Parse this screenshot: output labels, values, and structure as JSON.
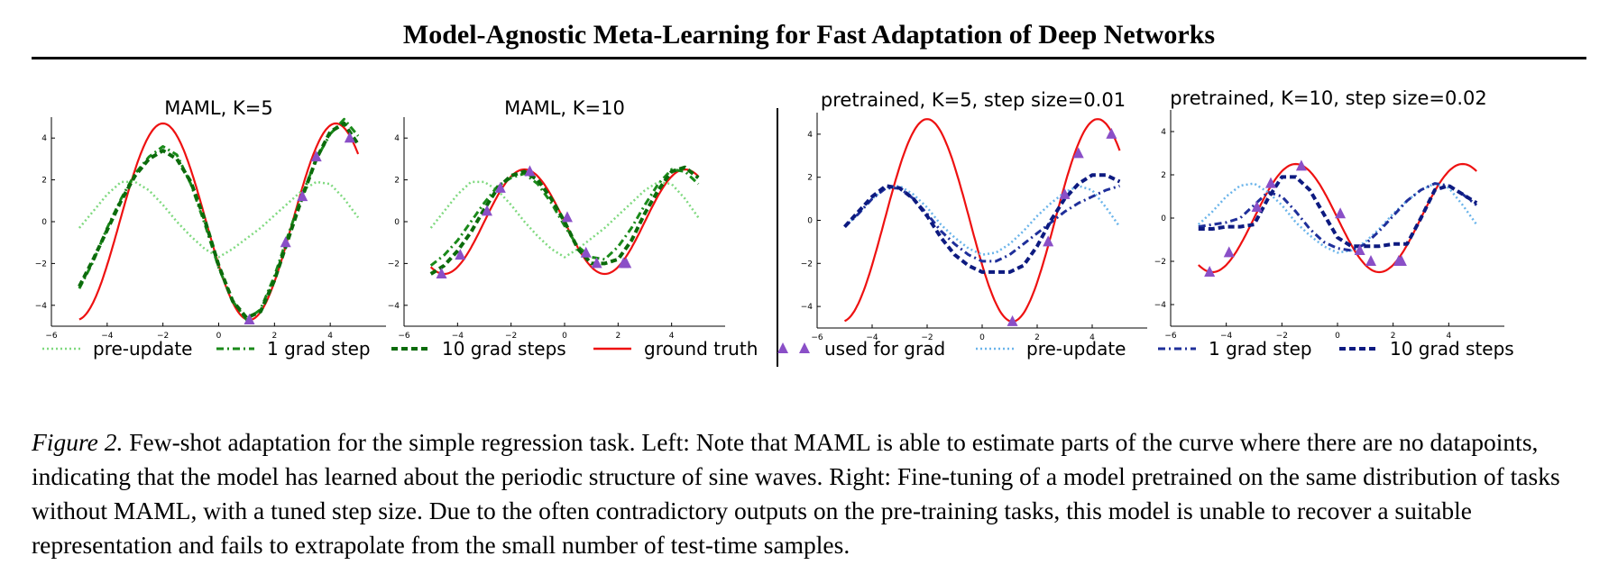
{
  "paper": {
    "title": "Model-Agnostic Meta-Learning for Fast Adaptation of Deep Networks"
  },
  "figure": {
    "label": "Figure 2.",
    "caption": "Few-shot adaptation for the simple regression task. Left: Note that MAML is able to estimate parts of the curve where there are no datapoints, indicating that the model has learned about the periodic structure of sine waves. Right: Fine-tuning of a model pretrained on the same distribution of tasks without MAML, with a tuned step size. Due to the often contradictory outputs on the pre-training tasks, this model is unable to recover a suitable representation and fails to extrapolate from the small number of test-time samples.",
    "legend": [
      {
        "label": "pre-update",
        "color": "#7fd97f",
        "style": "dotted"
      },
      {
        "label": "1 grad step",
        "color": "#1a8a1a",
        "style": "dashdot"
      },
      {
        "label": "10 grad steps",
        "color": "#0b6b0b",
        "style": "dashed"
      },
      {
        "label": "ground truth",
        "color": "#ee1111",
        "style": "solid"
      },
      {
        "label": "used for grad",
        "color": "#8a4fc7",
        "style": "triangle"
      },
      {
        "label": "pre-update",
        "color": "#6ab4ea",
        "style": "dotted"
      },
      {
        "label": "1 grad step",
        "color": "#1f2f9a",
        "style": "dashdot"
      },
      {
        "label": "10 grad steps",
        "color": "#0d1a80",
        "style": "dashed"
      }
    ]
  },
  "chart_data": [
    {
      "type": "line",
      "title": "MAML, K=5",
      "xlim": [
        -6,
        6
      ],
      "ylim": [
        -5,
        5
      ],
      "xticks": [
        -6,
        -4,
        -2,
        0,
        2,
        4
      ],
      "yticks": [
        -4,
        -2,
        0,
        2,
        4
      ],
      "ground_truth": {
        "amplitude": 4.7,
        "period": 6.2,
        "peak_x": -2.0
      },
      "series": [
        {
          "name": "pre-update",
          "x": [
            -5,
            -4.5,
            -4,
            -3.5,
            -3,
            -2.5,
            -2,
            -1.5,
            -1,
            -0.5,
            0,
            0.5,
            1,
            1.5,
            2,
            2.5,
            3,
            3.5,
            4,
            4.5,
            5
          ],
          "y": [
            -0.3,
            0.5,
            1.3,
            1.9,
            1.9,
            1.5,
            0.8,
            0,
            -0.7,
            -1.3,
            -1.7,
            -1.3,
            -0.8,
            -0.3,
            0.3,
            0.9,
            1.5,
            1.9,
            1.8,
            1.1,
            0.2
          ]
        },
        {
          "name": "1 grad step",
          "x": [
            -5,
            -4.5,
            -4,
            -3.5,
            -3,
            -2.5,
            -2,
            -1.5,
            -1,
            -0.5,
            0,
            0.5,
            1,
            1.5,
            2,
            2.5,
            3,
            3.5,
            4,
            4.5,
            5
          ],
          "y": [
            -3.2,
            -1.9,
            -0.3,
            1.1,
            2.3,
            3.1,
            3.6,
            3.2,
            1.8,
            -0.1,
            -2.2,
            -3.8,
            -4.7,
            -4.2,
            -2.6,
            -0.6,
            1.3,
            3.0,
            4.2,
            4.9,
            4.1
          ]
        },
        {
          "name": "10 grad steps",
          "x": [
            -5,
            -4.5,
            -4,
            -3.5,
            -3,
            -2.5,
            -2,
            -1.5,
            -1,
            -0.5,
            0,
            0.5,
            1,
            1.5,
            2,
            2.5,
            3,
            3.5,
            4,
            4.5,
            5
          ],
          "y": [
            -3.1,
            -1.8,
            -0.4,
            1.0,
            2.2,
            3.0,
            3.4,
            3.0,
            1.9,
            0.1,
            -2.1,
            -3.8,
            -4.6,
            -4.3,
            -2.8,
            -0.8,
            1.2,
            3.0,
            4.3,
            4.7,
            3.7
          ]
        }
      ],
      "points": {
        "x": [
          1.1,
          2.4,
          3.0,
          3.5,
          4.7
        ],
        "y": [
          -4.7,
          -1.0,
          1.2,
          3.1,
          4.0
        ]
      }
    },
    {
      "type": "line",
      "title": "MAML, K=10",
      "xlim": [
        -6,
        6
      ],
      "ylim": [
        -5,
        5
      ],
      "xticks": [
        -6,
        -4,
        -2,
        0,
        2,
        4
      ],
      "yticks": [
        -4,
        -2,
        0,
        2,
        4
      ],
      "ground_truth": {
        "amplitude": 2.5,
        "period": 6.0,
        "peak_x": -1.5
      },
      "series": [
        {
          "name": "pre-update",
          "x": [
            -5,
            -4.5,
            -4,
            -3.5,
            -3,
            -2.5,
            -2,
            -1.5,
            -1,
            -0.5,
            0,
            0.5,
            1,
            1.5,
            2,
            2.5,
            3,
            3.5,
            4,
            4.5,
            5
          ],
          "y": [
            -0.3,
            0.5,
            1.3,
            1.9,
            1.9,
            1.5,
            0.8,
            0,
            -0.7,
            -1.3,
            -1.7,
            -1.3,
            -0.8,
            -0.3,
            0.3,
            0.9,
            1.5,
            1.9,
            1.8,
            1.1,
            0.2
          ]
        },
        {
          "name": "1 grad step",
          "x": [
            -5,
            -4.5,
            -4,
            -3.5,
            -3,
            -2.5,
            -2,
            -1.5,
            -1,
            -0.5,
            0,
            0.5,
            1,
            1.5,
            2,
            2.5,
            3,
            3.5,
            4,
            4.5,
            5
          ],
          "y": [
            -2.1,
            -1.6,
            -0.9,
            0,
            0.9,
            1.7,
            2.1,
            2.3,
            1.8,
            0.9,
            -0.2,
            -1.2,
            -1.7,
            -1.8,
            -1.2,
            -0.3,
            0.8,
            1.8,
            2.5,
            2.4,
            1.8
          ]
        },
        {
          "name": "10 grad steps",
          "x": [
            -5,
            -4.5,
            -4,
            -3.5,
            -3,
            -2.5,
            -2,
            -1.5,
            -1,
            -0.5,
            0,
            0.5,
            1,
            1.5,
            2,
            2.5,
            3,
            3.5,
            4,
            4.5,
            5
          ],
          "y": [
            -2.5,
            -2.1,
            -1.4,
            -0.5,
            0.6,
            1.6,
            2.2,
            2.4,
            2.0,
            1.1,
            0,
            -1.3,
            -2.0,
            -2.0,
            -1.8,
            -0.9,
            0.4,
            1.5,
            2.4,
            2.6,
            2.1
          ]
        }
      ],
      "points": {
        "x": [
          -4.6,
          -3.9,
          -2.9,
          -2.4,
          -1.3,
          0.1,
          0.8,
          1.2,
          2.2,
          2.3
        ],
        "y": [
          -2.5,
          -1.6,
          0.5,
          1.6,
          2.4,
          0.2,
          -1.5,
          -2.0,
          -2.0,
          -2.0
        ]
      }
    },
    {
      "type": "line",
      "title": "pretrained, K=5, step size=0.01",
      "xlim": [
        -6,
        6
      ],
      "ylim": [
        -5,
        5
      ],
      "xticks": [
        -6,
        -4,
        -2,
        0,
        2,
        4
      ],
      "yticks": [
        -4,
        -2,
        0,
        2,
        4
      ],
      "ground_truth": {
        "amplitude": 4.7,
        "period": 6.2,
        "peak_x": -2.0
      },
      "series": [
        {
          "name": "pre-update",
          "x": [
            -5,
            -4.5,
            -4,
            -3.5,
            -3,
            -2.5,
            -2,
            -1.5,
            -1,
            -0.5,
            0,
            0.5,
            1,
            1.5,
            2,
            2.5,
            3,
            3.5,
            4,
            4.5,
            5
          ],
          "y": [
            -0.3,
            0.3,
            1.0,
            1.5,
            1.6,
            1.2,
            0.6,
            -0.2,
            -0.8,
            -1.3,
            -1.6,
            -1.5,
            -1.1,
            -0.5,
            0.2,
            0.8,
            1.3,
            1.6,
            1.4,
            0.6,
            -0.3
          ]
        },
        {
          "name": "1 grad step",
          "x": [
            -5,
            -4.5,
            -4,
            -3.5,
            -3,
            -2.5,
            -2,
            -1.5,
            -1,
            -0.5,
            0,
            0.5,
            1,
            1.5,
            2,
            2.5,
            3,
            3.5,
            4,
            4.5,
            5
          ],
          "y": [
            -0.3,
            0.3,
            1.0,
            1.5,
            1.5,
            1.0,
            0.3,
            -0.5,
            -1.1,
            -1.6,
            -1.9,
            -1.9,
            -1.6,
            -1.1,
            -0.6,
            -0.1,
            0.4,
            0.8,
            1.1,
            1.4,
            1.6
          ]
        },
        {
          "name": "10 grad steps",
          "x": [
            -5,
            -4.5,
            -4,
            -3.5,
            -3,
            -2.5,
            -2,
            -1.5,
            -1,
            -0.5,
            0,
            0.5,
            1,
            1.5,
            2,
            2.5,
            3,
            3.5,
            4,
            4.5,
            5
          ],
          "y": [
            -0.3,
            0.4,
            1.1,
            1.6,
            1.5,
            1.0,
            0.2,
            -0.8,
            -1.6,
            -2.1,
            -2.4,
            -2.4,
            -2.4,
            -2.1,
            -1.2,
            0,
            1.0,
            1.7,
            2.1,
            2.1,
            1.8
          ]
        }
      ],
      "points": {
        "x": [
          1.1,
          2.4,
          3.0,
          3.5,
          4.7
        ],
        "y": [
          -4.7,
          -1.0,
          1.2,
          3.1,
          4.0
        ]
      }
    },
    {
      "type": "line",
      "title": "pretrained, K=10, step size=0.02",
      "xlim": [
        -6,
        6
      ],
      "ylim": [
        -5,
        5
      ],
      "xticks": [
        -6,
        -4,
        -2,
        0,
        2,
        4
      ],
      "yticks": [
        -4,
        -2,
        0,
        2,
        4
      ],
      "ground_truth": {
        "amplitude": 2.5,
        "period": 6.0,
        "peak_x": -1.5
      },
      "series": [
        {
          "name": "pre-update",
          "x": [
            -5,
            -4.5,
            -4,
            -3.5,
            -3,
            -2.5,
            -2,
            -1.5,
            -1,
            -0.5,
            0,
            0.5,
            1,
            1.5,
            2,
            2.5,
            3,
            3.5,
            4,
            4.5,
            5
          ],
          "y": [
            -0.3,
            0.3,
            1.0,
            1.5,
            1.6,
            1.2,
            0.6,
            -0.2,
            -0.8,
            -1.3,
            -1.6,
            -1.5,
            -1.1,
            -0.5,
            0.2,
            0.8,
            1.3,
            1.6,
            1.4,
            0.6,
            -0.3
          ]
        },
        {
          "name": "1 grad step",
          "x": [
            -5,
            -4.5,
            -4,
            -3.5,
            -3,
            -2.5,
            -2,
            -1.5,
            -1,
            -0.5,
            0,
            0.5,
            1,
            1.5,
            2,
            2.5,
            3,
            3.5,
            4,
            4.5,
            5
          ],
          "y": [
            -0.4,
            -0.3,
            -0.2,
            0,
            0.6,
            1.2,
            1.0,
            0.3,
            -0.5,
            -1.1,
            -1.4,
            -1.5,
            -1.2,
            -0.6,
            0.1,
            0.8,
            1.3,
            1.6,
            1.5,
            1.1,
            0.6
          ]
        },
        {
          "name": "10 grad steps",
          "x": [
            -5,
            -4.5,
            -4,
            -3.5,
            -3,
            -2.5,
            -2,
            -1.5,
            -1,
            -0.5,
            0,
            0.5,
            1,
            1.5,
            2,
            2.5,
            3,
            3.5,
            4,
            4.5,
            5
          ],
          "y": [
            -0.5,
            -0.5,
            -0.4,
            -0.4,
            -0.3,
            0.9,
            1.9,
            1.9,
            1.3,
            0.2,
            -0.9,
            -1.3,
            -1.3,
            -1.3,
            -1.2,
            -1.2,
            0,
            1.3,
            1.5,
            1.1,
            0.7
          ]
        }
      ],
      "points": {
        "x": [
          -4.6,
          -3.9,
          -2.9,
          -2.4,
          -1.3,
          0.1,
          0.8,
          1.2,
          2.2,
          2.3
        ],
        "y": [
          -2.5,
          -1.6,
          0.5,
          1.6,
          2.4,
          0.2,
          -1.5,
          -2.0,
          -2.0,
          -2.0
        ]
      }
    }
  ]
}
